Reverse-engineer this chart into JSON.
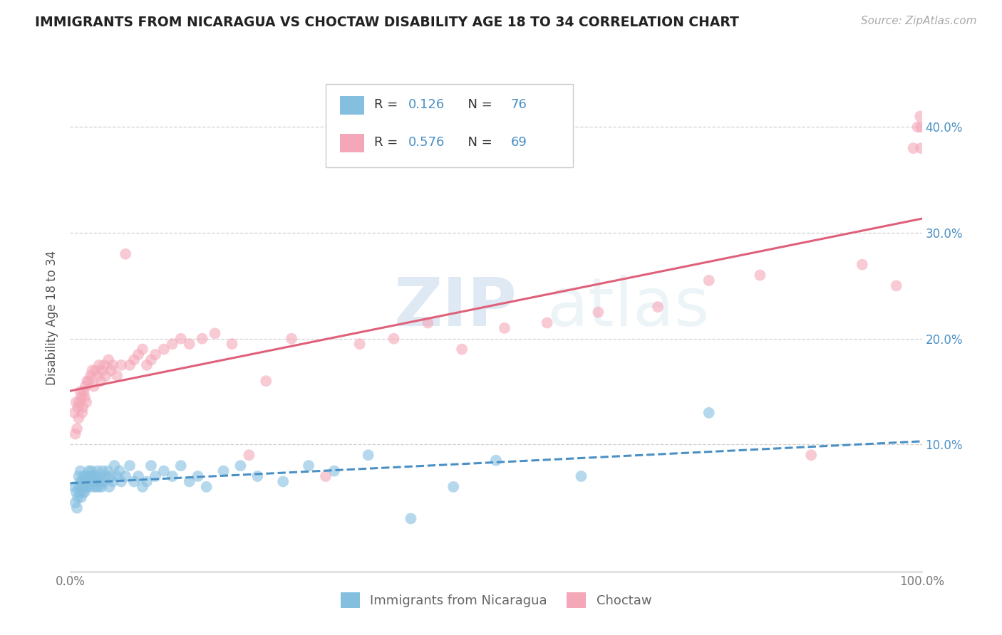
{
  "title": "IMMIGRANTS FROM NICARAGUA VS CHOCTAW DISABILITY AGE 18 TO 34 CORRELATION CHART",
  "source": "Source: ZipAtlas.com",
  "ylabel_label": "Disability Age 18 to 34",
  "legend_label_1": "Immigrants from Nicaragua",
  "legend_label_2": "Choctaw",
  "r1": 0.126,
  "n1": 76,
  "r2": 0.576,
  "n2": 69,
  "color_blue": "#85bfe0",
  "color_pink": "#f4a7b8",
  "color_blue_line": "#4a90c4",
  "color_pink_line": "#e0607a",
  "background_color": "#ffffff",
  "grid_color": "#d0d0d0",
  "xlim": [
    0.0,
    1.0
  ],
  "ylim": [
    -0.02,
    0.46
  ],
  "x_ticks": [
    0.0,
    0.2,
    0.4,
    0.6,
    0.8,
    1.0
  ],
  "x_tick_labels": [
    "0.0%",
    "",
    "",
    "",
    "",
    "100.0%"
  ],
  "y_ticks": [
    0.1,
    0.2,
    0.3,
    0.4
  ],
  "y_tick_labels": [
    "10.0%",
    "20.0%",
    "30.0%",
    "40.0%"
  ],
  "watermark_zip": "ZIP",
  "watermark_atlas": "atlas",
  "blue_x": [
    0.005,
    0.006,
    0.007,
    0.008,
    0.009,
    0.01,
    0.01,
    0.011,
    0.012,
    0.012,
    0.013,
    0.013,
    0.014,
    0.015,
    0.016,
    0.016,
    0.017,
    0.018,
    0.018,
    0.019,
    0.02,
    0.021,
    0.022,
    0.022,
    0.023,
    0.024,
    0.025,
    0.026,
    0.027,
    0.028,
    0.029,
    0.03,
    0.031,
    0.032,
    0.033,
    0.034,
    0.035,
    0.036,
    0.037,
    0.038,
    0.04,
    0.042,
    0.044,
    0.046,
    0.048,
    0.05,
    0.052,
    0.055,
    0.058,
    0.06,
    0.065,
    0.07,
    0.075,
    0.08,
    0.085,
    0.09,
    0.095,
    0.1,
    0.11,
    0.12,
    0.13,
    0.14,
    0.15,
    0.16,
    0.18,
    0.2,
    0.22,
    0.25,
    0.28,
    0.31,
    0.35,
    0.4,
    0.45,
    0.5,
    0.6,
    0.75
  ],
  "blue_y": [
    0.06,
    0.045,
    0.055,
    0.04,
    0.05,
    0.06,
    0.07,
    0.055,
    0.065,
    0.075,
    0.05,
    0.06,
    0.065,
    0.055,
    0.06,
    0.07,
    0.055,
    0.06,
    0.07,
    0.065,
    0.06,
    0.07,
    0.065,
    0.075,
    0.06,
    0.07,
    0.075,
    0.065,
    0.07,
    0.06,
    0.065,
    0.07,
    0.06,
    0.075,
    0.065,
    0.06,
    0.065,
    0.07,
    0.06,
    0.075,
    0.065,
    0.07,
    0.075,
    0.06,
    0.07,
    0.065,
    0.08,
    0.07,
    0.075,
    0.065,
    0.07,
    0.08,
    0.065,
    0.07,
    0.06,
    0.065,
    0.08,
    0.07,
    0.075,
    0.07,
    0.08,
    0.065,
    0.07,
    0.06,
    0.075,
    0.08,
    0.07,
    0.065,
    0.08,
    0.075,
    0.09,
    0.03,
    0.06,
    0.085,
    0.07,
    0.13
  ],
  "pink_x": [
    0.005,
    0.006,
    0.007,
    0.008,
    0.009,
    0.01,
    0.011,
    0.012,
    0.013,
    0.014,
    0.015,
    0.016,
    0.017,
    0.018,
    0.019,
    0.02,
    0.022,
    0.024,
    0.026,
    0.028,
    0.03,
    0.032,
    0.034,
    0.036,
    0.038,
    0.04,
    0.042,
    0.045,
    0.048,
    0.05,
    0.055,
    0.06,
    0.065,
    0.07,
    0.075,
    0.08,
    0.085,
    0.09,
    0.095,
    0.1,
    0.11,
    0.12,
    0.13,
    0.14,
    0.155,
    0.17,
    0.19,
    0.21,
    0.23,
    0.26,
    0.3,
    0.34,
    0.38,
    0.42,
    0.46,
    0.51,
    0.56,
    0.62,
    0.69,
    0.75,
    0.81,
    0.87,
    0.93,
    0.97,
    0.99,
    0.995,
    0.998,
    0.999,
    0.999
  ],
  "pink_y": [
    0.13,
    0.11,
    0.14,
    0.115,
    0.135,
    0.125,
    0.14,
    0.15,
    0.145,
    0.13,
    0.135,
    0.15,
    0.145,
    0.155,
    0.14,
    0.16,
    0.16,
    0.165,
    0.17,
    0.155,
    0.17,
    0.165,
    0.175,
    0.16,
    0.17,
    0.175,
    0.165,
    0.18,
    0.17,
    0.175,
    0.165,
    0.175,
    0.28,
    0.175,
    0.18,
    0.185,
    0.19,
    0.175,
    0.18,
    0.185,
    0.19,
    0.195,
    0.2,
    0.195,
    0.2,
    0.205,
    0.195,
    0.09,
    0.16,
    0.2,
    0.07,
    0.195,
    0.2,
    0.215,
    0.19,
    0.21,
    0.215,
    0.225,
    0.23,
    0.255,
    0.26,
    0.09,
    0.27,
    0.25,
    0.38,
    0.4,
    0.41,
    0.38,
    0.4
  ]
}
